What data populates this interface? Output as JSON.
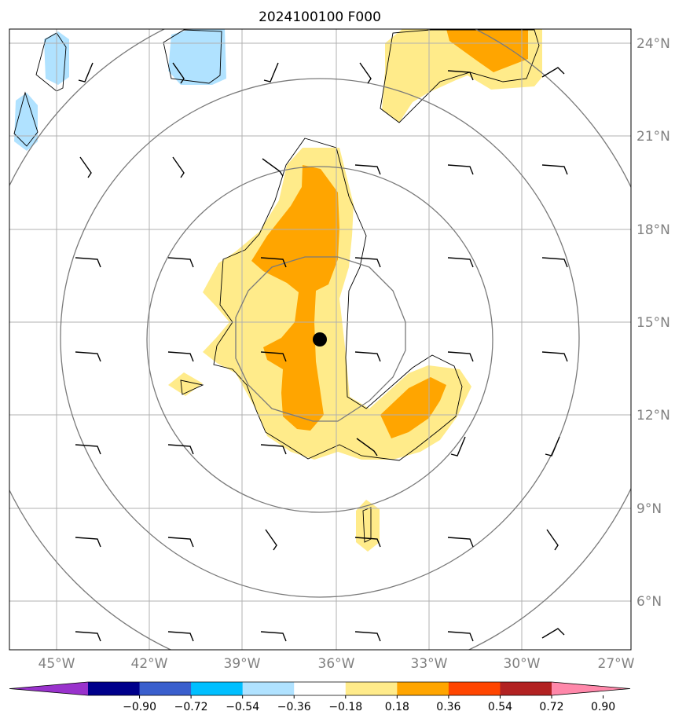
{
  "title": "2024100100 F000",
  "lon_labels": [
    "45°W",
    "42°W",
    "39°W",
    "36°W",
    "33°W",
    "30°W",
    "27°W"
  ],
  "lat_labels": [
    "24°N",
    "21°N",
    "18°N",
    "15°N",
    "12°N",
    "9°N",
    "6°N"
  ],
  "colorbar": {
    "colors": [
      "#9932cc",
      "#00008b",
      "#3a5fcd",
      "#00bfff",
      "#b0e2ff",
      "#ffffff",
      "#ffeb8a",
      "#ffa500",
      "#ff4500",
      "#b22222",
      "#ff88aa"
    ],
    "tick_labels": [
      "−0.90",
      "−0.72",
      "−0.54",
      "−0.36",
      "−0.18",
      "0.18",
      "0.36",
      "0.54",
      "0.72",
      "0.90"
    ]
  },
  "map_data": {
    "center_marker": {
      "lon": -36.5,
      "lat": 14.5
    },
    "extent": {
      "lon_min": -46.5,
      "lon_max": -26.5,
      "lat_min": 4.5,
      "lat_max": 24.5
    },
    "range_circle_radii_deg": [
      3,
      6,
      9,
      12
    ],
    "shading_colors": {
      "light_yellow": "#ffeb8a",
      "orange": "#ffa500",
      "light_blue": "#b0e2ff"
    }
  }
}
